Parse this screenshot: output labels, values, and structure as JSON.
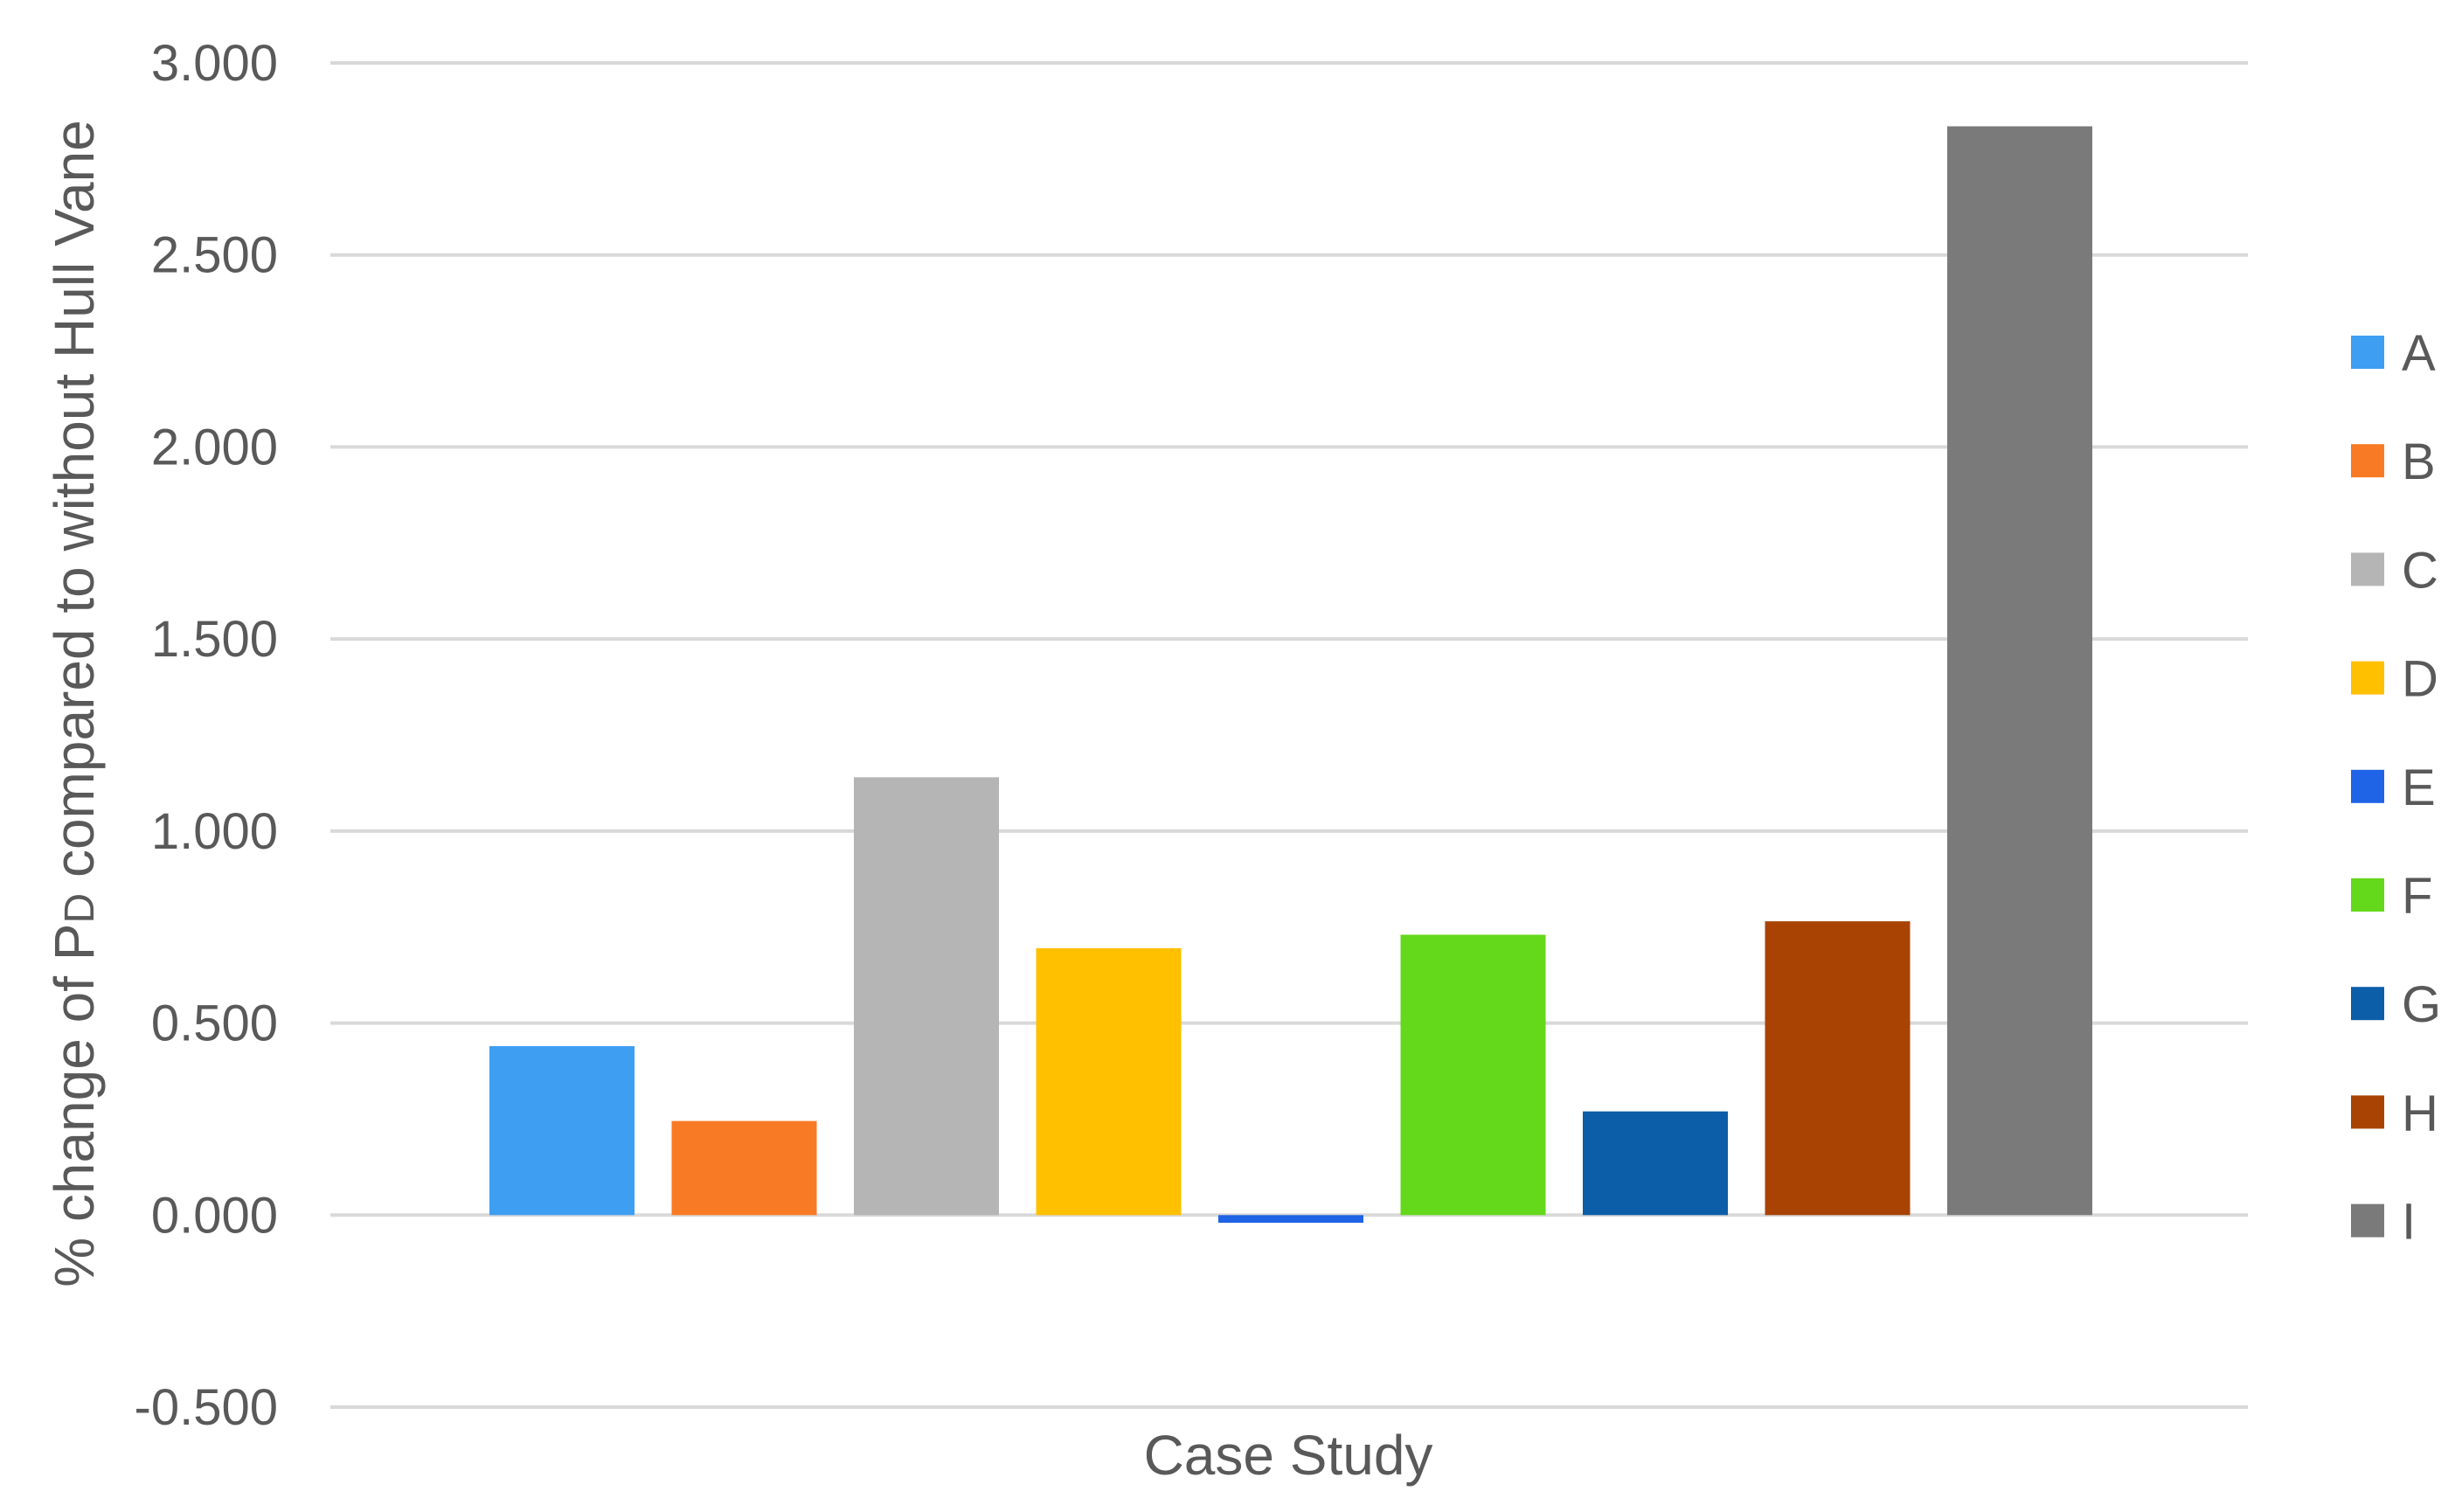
{
  "chart_data": {
    "type": "bar",
    "title": "",
    "xlabel": "Case Study",
    "ylabel_parts": {
      "prefix": "% change of P",
      "subscript": "D",
      "suffix": " compared to without Hull Vane"
    },
    "ylim": [
      -0.5,
      3.0
    ],
    "yticks": [
      "3.000",
      "2.500",
      "2.000",
      "1.500",
      "1.000",
      "0.500",
      "0.000",
      "-0.500"
    ],
    "yticks_values": [
      3.0,
      2.5,
      2.0,
      1.5,
      1.0,
      0.5,
      0.0,
      -0.5
    ],
    "grid": true,
    "legend_position": "right",
    "categories": [
      "A",
      "B",
      "C",
      "D",
      "E",
      "F",
      "G",
      "H",
      "I"
    ],
    "values": [
      0.44,
      0.245,
      1.14,
      0.695,
      -0.02,
      0.73,
      0.27,
      0.765,
      2.835
    ],
    "colors": [
      "#3e9ef2",
      "#f97a24",
      "#b5b5b5",
      "#ffc000",
      "#1f63e6",
      "#64d81a",
      "#0c5ea8",
      "#a84304",
      "#7a7a7a"
    ]
  }
}
